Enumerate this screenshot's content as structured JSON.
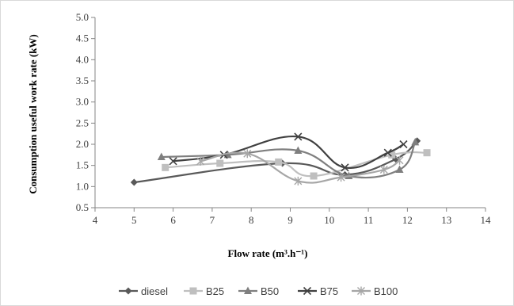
{
  "chart_data": {
    "type": "line",
    "xlabel": "Flow rate (m³.h⁻¹)",
    "ylabel": "Consumption useful work rate  (kW)",
    "xlim": [
      4,
      14
    ],
    "ylim": [
      0.5,
      5.0
    ],
    "xticks": [
      "4",
      "5",
      "6",
      "7",
      "8",
      "9",
      "10",
      "11",
      "12",
      "13",
      "14"
    ],
    "yticks": [
      "0.5",
      "1.0",
      "1.5",
      "2.0",
      "2.5",
      "3.0",
      "3.5",
      "4.0",
      "4.5",
      "5.0"
    ],
    "grid": false,
    "legend_position": "bottom",
    "series": [
      {
        "name": "diesel",
        "marker": "diamond",
        "color": "#595959",
        "x": [
          5.0,
          8.8,
          10.4,
          11.7,
          12.25
        ],
        "y": [
          1.1,
          1.55,
          1.28,
          1.65,
          2.08
        ]
      },
      {
        "name": "B25",
        "marker": "square",
        "color": "#bfbfbf",
        "x": [
          5.8,
          7.2,
          8.7,
          9.6,
          11.6,
          12.5
        ],
        "y": [
          1.45,
          1.55,
          1.58,
          1.25,
          1.75,
          1.8
        ]
      },
      {
        "name": "B50",
        "marker": "triangle",
        "color": "#7f7f7f",
        "x": [
          5.7,
          7.4,
          9.2,
          10.5,
          11.8,
          12.2
        ],
        "y": [
          1.7,
          1.75,
          1.85,
          1.25,
          1.4,
          2.05
        ]
      },
      {
        "name": "B75",
        "marker": "x",
        "color": "#404040",
        "x": [
          6.0,
          7.3,
          9.2,
          10.4,
          11.5,
          11.9
        ],
        "y": [
          1.6,
          1.75,
          2.18,
          1.45,
          1.8,
          2.0
        ]
      },
      {
        "name": "B100",
        "marker": "asterisk",
        "color": "#a6a6a6",
        "x": [
          6.7,
          7.9,
          9.2,
          10.3,
          11.4,
          11.8
        ],
        "y": [
          1.6,
          1.78,
          1.13,
          1.22,
          1.4,
          1.62
        ]
      }
    ]
  }
}
